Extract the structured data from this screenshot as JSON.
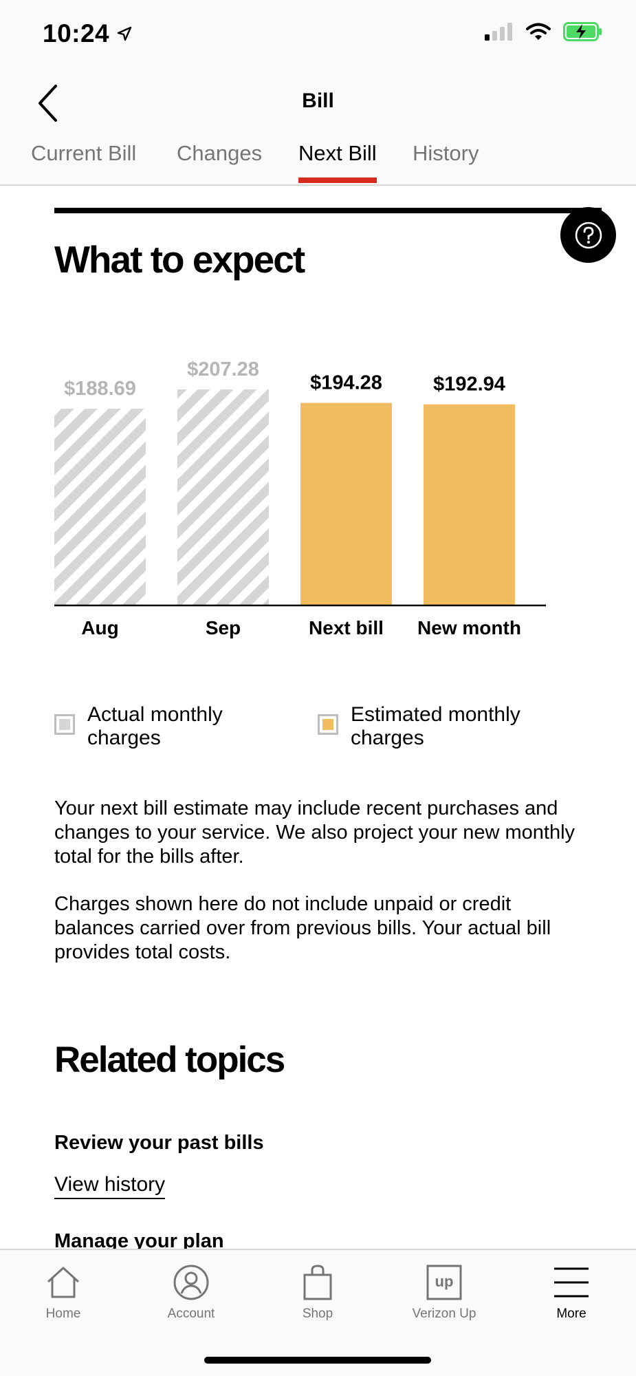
{
  "status_bar": {
    "time": "10:24"
  },
  "header": {
    "title": "Bill",
    "tabs": [
      {
        "label": "Current Bill"
      },
      {
        "label": "Changes"
      },
      {
        "label": "Next Bill"
      },
      {
        "label": "History"
      }
    ],
    "active_tab": "Next Bill"
  },
  "section": {
    "title": "What to expect"
  },
  "chart_data": {
    "type": "bar",
    "categories": [
      "Aug",
      "Sep",
      "Next bill",
      "New month"
    ],
    "values": [
      188.69,
      207.28,
      194.28,
      192.94
    ],
    "labels": [
      "$188.69",
      "$207.28",
      "$194.28",
      "$192.94"
    ],
    "series_type": [
      "actual",
      "actual",
      "estimated",
      "estimated"
    ],
    "colors": {
      "actual_fill": "#d6d6d6",
      "actual_label": "#b5b5b5",
      "estimated": "#f2bd60"
    },
    "title": "",
    "xlabel": "",
    "ylabel": ""
  },
  "legend": {
    "actual": "Actual monthly charges",
    "estimated": "Estimated monthly charges"
  },
  "description": [
    "Your next bill estimate may include recent purchases and changes to your service. We also project your new monthly total for the bills after.",
    "Charges shown here do not include unpaid or credit balances carried over from previous bills. Your actual bill provides total costs."
  ],
  "related": {
    "title": "Related topics",
    "topics": [
      {
        "heading": "Review your past bills",
        "link": "View history"
      },
      {
        "heading": "Manage your plan"
      }
    ]
  },
  "tab_bar": {
    "items": [
      {
        "label": "Home",
        "icon": "home-icon"
      },
      {
        "label": "Account",
        "icon": "account-icon"
      },
      {
        "label": "Shop",
        "icon": "shop-icon"
      },
      {
        "label": "Verizon Up",
        "icon": "verizon-up-icon"
      },
      {
        "label": "More",
        "icon": "menu-icon"
      }
    ],
    "active": "More"
  }
}
